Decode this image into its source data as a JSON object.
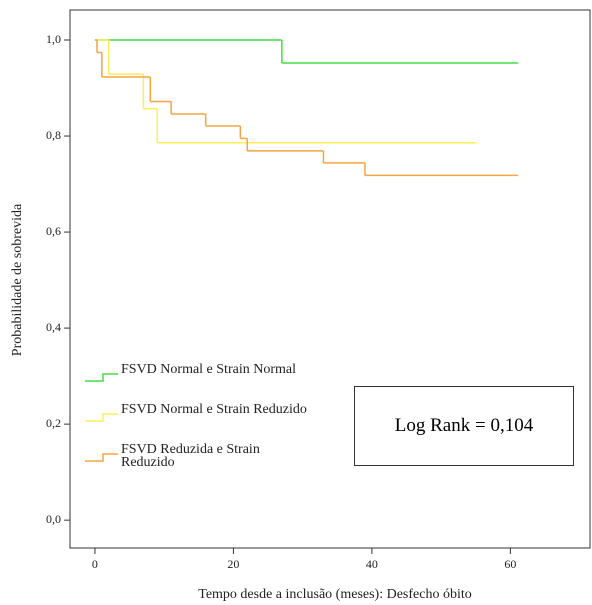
{
  "chart_data": {
    "type": "step",
    "ylabel": "Probabilidade de sobrevida",
    "xlabel": "Tempo desde a inclusão (meses): Desfecho óbito",
    "annotation": "Log Rank = 0,104",
    "xlim": [
      -3.6,
      71.5
    ],
    "xticks": [
      0,
      20,
      40,
      60
    ],
    "ylim": [
      -0.058,
      1.0625
    ],
    "yticks": [
      {
        "value": 0,
        "label": "0,0"
      },
      {
        "value": 0.2,
        "label": "0,2"
      },
      {
        "value": 0.4,
        "label": "0,4"
      },
      {
        "value": 0.6,
        "label": "0,6"
      },
      {
        "value": 0.8,
        "label": "0,8"
      },
      {
        "value": 1,
        "label": "1,0"
      }
    ],
    "legend_position": "lower left",
    "series": [
      {
        "name": "FSVD Normal e Strain Normal",
        "color": "#44dd44",
        "x": [
          0,
          27,
          61
        ],
        "values": [
          1.0,
          0.952,
          0.952
        ]
      },
      {
        "name": "FSVD Normal e Strain Reduzido",
        "color": "#ffee55",
        "x": [
          0,
          2,
          7,
          9,
          55
        ],
        "values": [
          1.0,
          0.929,
          0.857,
          0.786,
          0.786
        ]
      },
      {
        "name": "FSVD Reduzida e Strain Reduzido",
        "color": "#f5a540",
        "x": [
          0,
          0.3,
          1,
          8,
          11,
          16,
          21,
          22,
          33,
          39,
          61
        ],
        "values": [
          1.0,
          0.974,
          0.923,
          0.872,
          0.846,
          0.821,
          0.795,
          0.769,
          0.744,
          0.718,
          0.718
        ]
      }
    ]
  }
}
